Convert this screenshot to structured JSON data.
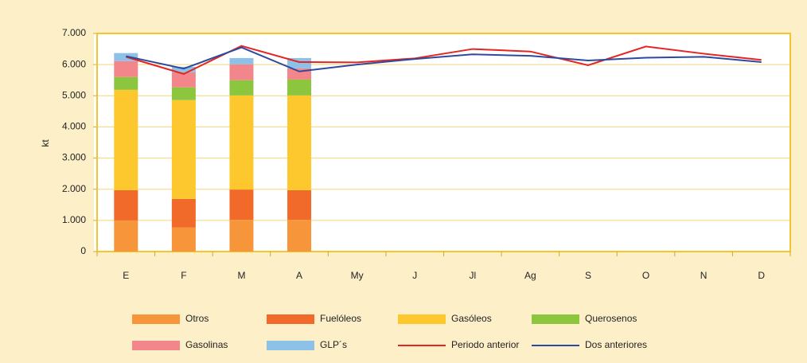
{
  "chart_data": {
    "type": "bar",
    "stacked": true,
    "ylabel": "kt",
    "categories": [
      "E",
      "F",
      "M",
      "A",
      "My",
      "J",
      "Jl",
      "Ag",
      "S",
      "O",
      "N",
      "D"
    ],
    "ylim": [
      0,
      7000
    ],
    "yticks": [
      0,
      {
        "value": 1000,
        "label": "1.000"
      },
      {
        "value": 2000,
        "label": "2.000"
      },
      {
        "value": 3000,
        "label": "3.000"
      },
      {
        "value": 4000,
        "label": "4.000"
      },
      {
        "value": 5000,
        "label": "5.000"
      },
      {
        "value": 6000,
        "label": "6.000"
      },
      {
        "value": 7000,
        "label": "7.000"
      }
    ],
    "grid": true,
    "legend": "bottom",
    "series": [
      {
        "name": "Otros",
        "type": "bar",
        "color": "#f7953a",
        "values": [
          1000,
          770,
          1020,
          1020,
          null,
          null,
          null,
          null,
          null,
          null,
          null,
          null
        ]
      },
      {
        "name": "Fuelóleos",
        "type": "bar",
        "color": "#f26a2a",
        "values": [
          970,
          920,
          970,
          950,
          null,
          null,
          null,
          null,
          null,
          null,
          null,
          null
        ]
      },
      {
        "name": "Gasóleos",
        "type": "bar",
        "color": "#fdc82e",
        "values": [
          3220,
          3170,
          3020,
          3040,
          null,
          null,
          null,
          null,
          null,
          null,
          null,
          null
        ]
      },
      {
        "name": "Querosenos",
        "type": "bar",
        "color": "#8cc63f",
        "values": [
          410,
          410,
          490,
          510,
          null,
          null,
          null,
          null,
          null,
          null,
          null,
          null
        ]
      },
      {
        "name": "Gasolinas",
        "type": "bar",
        "color": "#f3868a",
        "values": [
          510,
          480,
          510,
          360,
          null,
          null,
          null,
          null,
          null,
          null,
          null,
          null
        ]
      },
      {
        "name": "GLP´s",
        "type": "bar",
        "color": "#8ec1e8",
        "values": [
          260,
          180,
          200,
          330,
          null,
          null,
          null,
          null,
          null,
          null,
          null,
          null
        ]
      },
      {
        "name": "Periodo anterior",
        "type": "line",
        "color": "#e52521",
        "values": [
          6250,
          5700,
          6600,
          6080,
          6070,
          6200,
          6500,
          6420,
          5980,
          6580,
          6350,
          6150
        ]
      },
      {
        "name": "Dos anteriores",
        "type": "line",
        "color": "#2e4a9e",
        "values": [
          6270,
          5870,
          6550,
          5780,
          6000,
          6180,
          6330,
          6280,
          6130,
          6220,
          6250,
          6080
        ]
      }
    ]
  }
}
